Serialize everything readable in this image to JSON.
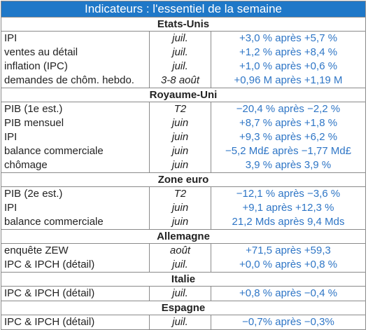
{
  "title": "Indicateurs : l'essentiel de la semaine",
  "sections": [
    {
      "name": "Etats-Unis",
      "rows": [
        {
          "indicator": "IPI",
          "period": "juil.",
          "value": "+3,0 % après +5,7 %"
        },
        {
          "indicator": "ventes au détail",
          "period": "juil.",
          "value": "+1,2 % après +8,4 %"
        },
        {
          "indicator": "inflation (IPC)",
          "period": "juil.",
          "value": "+1,0 % après +0,6 %"
        },
        {
          "indicator": "demandes de chôm. hebdo.",
          "period": "3-8 août",
          "value": "+0,96 M après +1,19 M"
        }
      ]
    },
    {
      "name": "Royaume-Uni",
      "rows": [
        {
          "indicator": "PIB (1e est.)",
          "period": "T2",
          "value": "−20,4 % après −2,2 %"
        },
        {
          "indicator": "PIB mensuel",
          "period": "juin",
          "value": "+8,7 % après +1,8 %"
        },
        {
          "indicator": "IPI",
          "period": "juin",
          "value": "+9,3 % après +6,2 %"
        },
        {
          "indicator": "balance commerciale",
          "period": "juin",
          "value": "−5,2 Md£ après −1,77 Md£"
        },
        {
          "indicator": "chômage",
          "period": "juin",
          "value": "3,9 % après 3,9 %"
        }
      ]
    },
    {
      "name": "Zone euro",
      "rows": [
        {
          "indicator": "PIB (2e est.)",
          "period": "T2",
          "value": "−12,1 % après −3,6 %"
        },
        {
          "indicator": "IPI",
          "period": "juin",
          "value": "+9,1 après +12,3 %"
        },
        {
          "indicator": "balance commerciale",
          "period": "juin",
          "value": "21,2 Mds après 9,4 Mds"
        }
      ]
    },
    {
      "name": "Allemagne",
      "rows": [
        {
          "indicator": "enquête ZEW",
          "period": "août",
          "value": "+71,5 après +59,3"
        },
        {
          "indicator": "IPC & IPCH (détail)",
          "period": "juil.",
          "value": "+0,0 % après +0,8 %"
        }
      ]
    },
    {
      "name": "Italie",
      "rows": [
        {
          "indicator": "IPC & IPCH (détail)",
          "period": "juil.",
          "value": "+0,8 % après −0,4 %"
        }
      ]
    },
    {
      "name": "Espagne",
      "rows": [
        {
          "indicator": "IPC & IPCH (détail)",
          "period": "juil.",
          "value": "−0,7% après −0,3%"
        }
      ]
    }
  ]
}
